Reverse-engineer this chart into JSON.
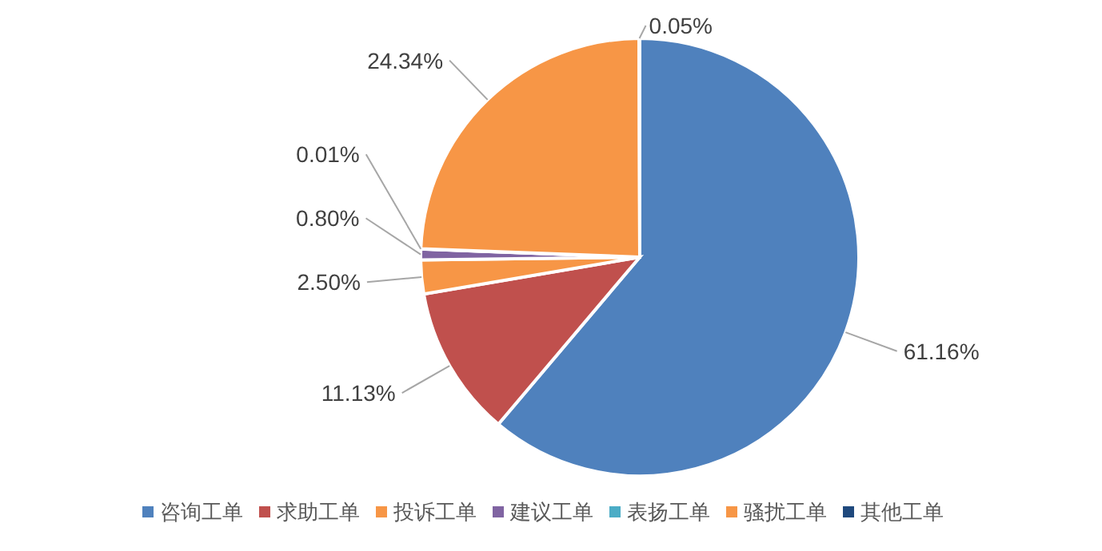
{
  "chart_data": {
    "type": "pie",
    "categories": [
      "咨询工单",
      "求助工单",
      "投诉工单",
      "建议工单",
      "表扬工单",
      "骚扰工单",
      "其他工单"
    ],
    "values": [
      61.16,
      11.13,
      2.5,
      0.8,
      0.01,
      24.34,
      0.05
    ],
    "value_labels": [
      "61.16%",
      "11.13%",
      "2.50%",
      "0.80%",
      "0.01%",
      "24.34%",
      "0.05%"
    ],
    "colors": [
      "#4f81bd",
      "#c0504d",
      "#f79646",
      "#8064a2",
      "#4bacc6",
      "#f79646",
      "#1f497d"
    ],
    "legend": "bottom"
  }
}
